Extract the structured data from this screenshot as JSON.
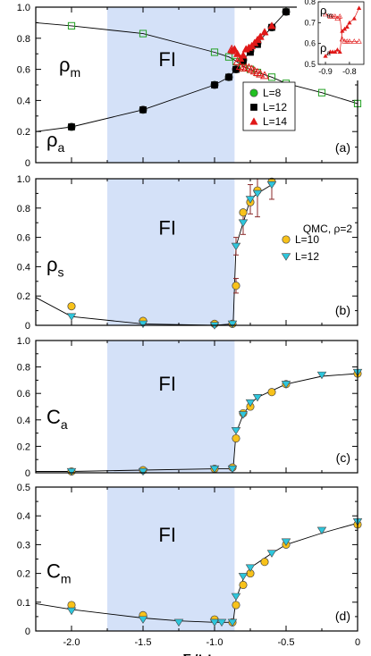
{
  "chart_data": [
    {
      "id": "a",
      "type": "scatter",
      "panel_label": "(a)",
      "fi_label": "FI",
      "curve_labels": {
        "upper": {
          "base": "ρ",
          "sub": "m"
        },
        "lower": {
          "base": "ρ",
          "sub": "a"
        }
      },
      "xlim": [
        -2.25,
        0.0
      ],
      "ylim": [
        0.0,
        1.0
      ],
      "yticks": [
        "0",
        "0.2",
        "0.4",
        "0.6",
        "0.8",
        "1.0"
      ],
      "shaded_region": [
        -1.75,
        -0.86
      ],
      "series": [
        {
          "name": "L=8",
          "color": "#22c022",
          "marker": "circle",
          "x": [
            -2.0,
            -1.5,
            -1.0,
            -0.9,
            -0.85,
            -0.8,
            -0.75,
            -0.7,
            -0.6,
            -0.5
          ],
          "y": [
            0.23,
            0.34,
            0.5,
            0.55,
            0.6,
            0.66,
            0.72,
            0.77,
            0.87,
            0.97
          ]
        },
        {
          "name": "L=12",
          "color": "#000000",
          "marker": "square",
          "x": [
            -2.0,
            -1.5,
            -1.0,
            -0.9,
            -0.85,
            -0.8,
            -0.75,
            -0.7,
            -0.6,
            -0.5
          ],
          "y": [
            0.23,
            0.34,
            0.5,
            0.55,
            0.6,
            0.65,
            0.71,
            0.76,
            0.87,
            0.97
          ]
        },
        {
          "name": "L=14",
          "color": "#e01818",
          "marker": "triangle",
          "x": [
            -0.88,
            -0.86,
            -0.84,
            -0.82,
            -0.8,
            -0.78,
            -0.76,
            -0.74,
            -0.72,
            -0.7,
            -0.68,
            -0.65,
            -0.6
          ],
          "y": [
            0.72,
            0.73,
            0.7,
            0.67,
            0.69,
            0.73,
            0.74,
            0.75,
            0.77,
            0.79,
            0.81,
            0.84,
            0.88
          ]
        },
        {
          "name": "",
          "color": "#22a022",
          "marker": "open-square",
          "x": [
            -2.0,
            -1.5,
            -1.0,
            -0.9,
            -0.85,
            -0.8,
            -0.75,
            -0.7,
            -0.6,
            -0.5,
            -0.25,
            0.0
          ],
          "y": [
            0.88,
            0.83,
            0.71,
            0.68,
            0.65,
            0.61,
            0.6,
            0.58,
            0.55,
            0.51,
            0.45,
            0.38
          ]
        },
        {
          "name": "",
          "color": "#e01818",
          "marker": "open-triangle",
          "x": [
            -0.88,
            -0.86,
            -0.84,
            -0.82,
            -0.8,
            -0.78,
            -0.76,
            -0.74,
            -0.72,
            -0.7,
            -0.68,
            -0.65
          ],
          "y": [
            0.73,
            0.72,
            0.65,
            0.62,
            0.61,
            0.61,
            0.61,
            0.6,
            0.59,
            0.58,
            0.57,
            0.56
          ]
        }
      ],
      "curves": [
        {
          "x": [
            -2.25,
            -2.0,
            -1.5,
            -1.0,
            -0.9,
            -0.86,
            -0.8,
            -0.7,
            -0.6,
            -0.5,
            -0.25,
            0.0
          ],
          "y": [
            0.9,
            0.88,
            0.83,
            0.71,
            0.68,
            0.66,
            0.62,
            0.58,
            0.55,
            0.51,
            0.45,
            0.38
          ]
        },
        {
          "x": [
            -2.25,
            -2.0,
            -1.5,
            -1.0,
            -0.9,
            -0.86,
            -0.8,
            -0.7,
            -0.6,
            -0.5
          ],
          "y": [
            0.2,
            0.23,
            0.34,
            0.5,
            0.55,
            0.59,
            0.66,
            0.77,
            0.87,
            0.97
          ]
        }
      ],
      "legend": {
        "placement": "middle-right",
        "entries": [
          "L=8",
          "L=12",
          "L=14"
        ]
      },
      "inset": {
        "xlim": [
          -0.93,
          -0.74
        ],
        "ylim": [
          0.5,
          0.8
        ],
        "xticks": [
          "-0.9",
          "-0.8"
        ],
        "yticks": [
          "0.5",
          "0.6",
          "0.7",
          "0.8"
        ],
        "labels": [
          {
            "base": "ρ",
            "sub": "m"
          },
          {
            "base": "ρ",
            "sub": "a"
          }
        ],
        "filled": {
          "x": [
            -0.9,
            -0.88,
            -0.87,
            -0.86,
            -0.85,
            -0.84,
            -0.83,
            -0.82,
            -0.81,
            -0.8,
            -0.78,
            -0.76
          ],
          "y": [
            0.54,
            0.56,
            0.56,
            0.56,
            0.57,
            0.56,
            0.66,
            0.67,
            0.68,
            0.7,
            0.72,
            0.77
          ]
        },
        "open": {
          "x": [
            -0.9,
            -0.88,
            -0.87,
            -0.86,
            -0.85,
            -0.84,
            -0.83,
            -0.82,
            -0.81,
            -0.8,
            -0.78,
            -0.76
          ],
          "y": [
            0.74,
            0.73,
            0.73,
            0.73,
            0.72,
            0.73,
            0.62,
            0.61,
            0.61,
            0.61,
            0.61,
            0.61
          ]
        }
      }
    },
    {
      "id": "b",
      "type": "scatter",
      "panel_label": "(b)",
      "fi_label": "FI",
      "curve_labels": {
        "lower": {
          "base": "ρ",
          "sub": "s"
        }
      },
      "annotation": "QMC, ρ=2",
      "xlim": [
        -2.25,
        0.0
      ],
      "ylim": [
        0.0,
        1.0
      ],
      "yticks": [
        "0",
        "0.2",
        "0.4",
        "0.6",
        "0.8",
        "1.0"
      ],
      "shaded_region": [
        -1.75,
        -0.86
      ],
      "series": [
        {
          "name": "L=10",
          "color": "#f8c21a",
          "marker": "circle",
          "x": [
            -2.0,
            -1.5,
            -1.0,
            -0.875,
            -0.85,
            -0.8,
            -0.75,
            -0.7,
            -0.6
          ],
          "y": [
            0.13,
            0.03,
            0.01,
            0.01,
            0.27,
            0.77,
            0.84,
            0.92,
            0.98
          ]
        },
        {
          "name": "L=12",
          "color": "#2ec6dc",
          "marker": "triangle-down",
          "x": [
            -2.0,
            -1.5,
            -1.0,
            -0.875,
            -0.85,
            -0.8,
            -0.75,
            -0.7,
            -0.6
          ],
          "y": [
            0.06,
            0.01,
            0.0,
            0.01,
            0.54,
            0.7,
            0.86,
            0.9,
            0.96
          ]
        }
      ],
      "error_bars": [
        {
          "x": -0.85,
          "lo": 0.22,
          "hi": 0.32
        },
        {
          "x": -0.85,
          "lo": 0.48,
          "hi": 0.6
        },
        {
          "x": -0.8,
          "lo": 0.62,
          "hi": 0.78
        },
        {
          "x": -0.75,
          "lo": 0.76,
          "hi": 0.96
        },
        {
          "x": -0.7,
          "lo": 0.74,
          "hi": 1.0
        },
        {
          "x": -0.6,
          "lo": 0.86,
          "hi": 1.0
        }
      ],
      "curves": [
        {
          "x": [
            -2.25,
            -2.0,
            -1.5,
            -1.0,
            -0.875,
            -0.87,
            -0.85,
            -0.8,
            -0.75,
            -0.7,
            -0.6
          ],
          "y": [
            0.19,
            0.06,
            0.01,
            0.0,
            0.01,
            0.01,
            0.54,
            0.7,
            0.86,
            0.9,
            0.96
          ]
        }
      ],
      "legend": {
        "placement": "top-right",
        "entries": [
          "L=10",
          "L=12"
        ]
      }
    },
    {
      "id": "c",
      "type": "scatter",
      "panel_label": "(c)",
      "fi_label": "FI",
      "curve_labels": {
        "lower": {
          "base": "C",
          "sub": "a"
        }
      },
      "xlim": [
        -2.25,
        0.0
      ],
      "ylim": [
        0.0,
        1.0
      ],
      "yticks": [
        "0",
        "0.2",
        "0.4",
        "0.6",
        "0.8",
        "1.0"
      ],
      "shaded_region": [
        -1.75,
        -0.86
      ],
      "series": [
        {
          "name": "L=10",
          "color": "#f8c21a",
          "marker": "circle",
          "x": [
            -2.0,
            -1.5,
            -1.0,
            -0.875,
            -0.85,
            -0.8,
            -0.75,
            -0.6,
            -0.5,
            0.0
          ],
          "y": [
            0.01,
            0.02,
            0.03,
            0.04,
            0.26,
            0.45,
            0.5,
            0.61,
            0.67,
            0.75
          ]
        },
        {
          "name": "L=12",
          "color": "#2ec6dc",
          "marker": "triangle-down",
          "x": [
            -2.0,
            -1.5,
            -1.0,
            -0.875,
            -0.85,
            -0.8,
            -0.75,
            -0.7,
            -0.5,
            -0.25,
            0.0
          ],
          "y": [
            0.01,
            0.01,
            0.03,
            0.03,
            0.32,
            0.44,
            0.53,
            0.57,
            0.67,
            0.74,
            0.76
          ]
        }
      ],
      "curves": [
        {
          "x": [
            -2.25,
            -2.0,
            -1.5,
            -1.0,
            -0.875,
            -0.87,
            -0.85,
            -0.8,
            -0.75,
            -0.7,
            -0.6,
            -0.5,
            -0.25,
            0.0
          ],
          "y": [
            0.01,
            0.01,
            0.02,
            0.03,
            0.03,
            0.03,
            0.3,
            0.44,
            0.52,
            0.57,
            0.62,
            0.67,
            0.73,
            0.75
          ]
        }
      ]
    },
    {
      "id": "d",
      "type": "scatter",
      "panel_label": "(d)",
      "fi_label": "FI",
      "curve_labels": {
        "lower": {
          "base": "C",
          "sub": "m"
        }
      },
      "xlim": [
        -2.25,
        0.0
      ],
      "ylim": [
        0.0,
        0.5
      ],
      "yticks": [
        "0",
        "0.1",
        "0.2",
        "0.3",
        "0.4",
        "0.5"
      ],
      "xticks": [
        "-2.0",
        "-1.5",
        "-1.0",
        "-0.5",
        "0"
      ],
      "xlabel": "δ/U",
      "shaded_region": [
        -1.75,
        -0.86
      ],
      "series": [
        {
          "name": "L=10",
          "color": "#f8c21a",
          "marker": "circle",
          "x": [
            -2.0,
            -1.5,
            -1.0,
            -0.875,
            -0.85,
            -0.8,
            -0.75,
            -0.65,
            -0.5,
            0.0
          ],
          "y": [
            0.09,
            0.055,
            0.04,
            0.03,
            0.09,
            0.16,
            0.2,
            0.24,
            0.3,
            0.37
          ]
        },
        {
          "name": "L=12",
          "color": "#2ec6dc",
          "marker": "triangle-down",
          "x": [
            -2.0,
            -1.5,
            -1.25,
            -1.0,
            -0.95,
            -0.875,
            -0.85,
            -0.8,
            -0.75,
            -0.6,
            -0.5,
            -0.25,
            0.0
          ],
          "y": [
            0.07,
            0.04,
            0.03,
            0.03,
            0.03,
            0.03,
            0.12,
            0.19,
            0.22,
            0.27,
            0.31,
            0.35,
            0.38
          ]
        }
      ],
      "curves": [
        {
          "x": [
            -2.25,
            -2.0,
            -1.5,
            -1.25,
            -1.0,
            -0.875,
            -0.87,
            -0.85,
            -0.8,
            -0.75,
            -0.6,
            -0.5,
            -0.25,
            0.0
          ],
          "y": [
            0.095,
            0.075,
            0.045,
            0.035,
            0.03,
            0.03,
            0.03,
            0.11,
            0.18,
            0.22,
            0.27,
            0.3,
            0.34,
            0.375
          ]
        }
      ]
    }
  ]
}
